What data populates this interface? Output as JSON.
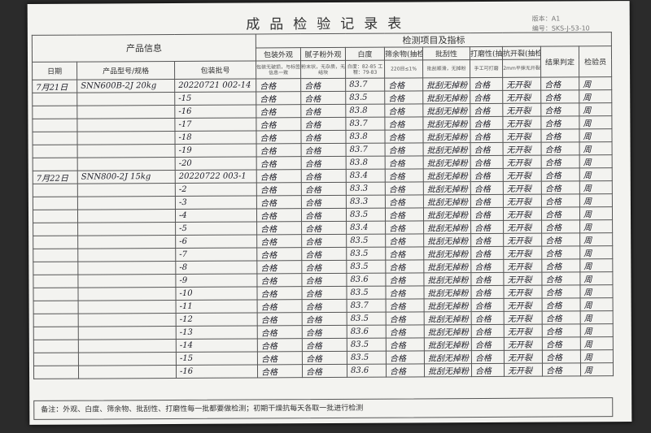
{
  "header": {
    "title": "成品检验记录表",
    "version": "版本：A1",
    "code": "编号：SKS-J-53-10"
  },
  "table": {
    "group_headers": [
      "产品信息",
      "检测项目及指标"
    ],
    "columns": [
      "日期",
      "产品型号/规格",
      "包装批号",
      "包装外观",
      "腻子粉外观",
      "白度",
      "筛余物(抽检)",
      "批刮性",
      "打磨性(抽检)",
      "抗开裂(抽检)",
      "结果判定",
      "检验员"
    ],
    "criteria": [
      "包装无破损，与标签信息一致",
      "粉末状，无杂质，无结块",
      "白度：82-85 工程：79-83",
      "220目≤1%",
      "批刮顺滑，无掉粉",
      "手工可打磨",
      "2mm平抹无开裂"
    ],
    "rows": [
      [
        "7月21日",
        "SNN600B-2J 20kg",
        "20220721 002-14",
        "合格",
        "合格",
        83.7,
        "合格",
        "批刮无掉粉",
        "合格",
        "无开裂",
        "合格",
        "周"
      ],
      [
        null,
        null,
        "-15",
        "合格",
        "合格",
        83.5,
        "合格",
        "批刮无掉粉",
        "合格",
        "无开裂",
        "合格",
        "周"
      ],
      [
        null,
        null,
        "-16",
        "合格",
        "合格",
        83.8,
        "合格",
        "批刮无掉粉",
        "合格",
        "无开裂",
        "合格",
        "周"
      ],
      [
        null,
        null,
        "-17",
        "合格",
        "合格",
        83.7,
        "合格",
        "批刮无掉粉",
        "合格",
        "无开裂",
        "合格",
        "周"
      ],
      [
        null,
        null,
        "-18",
        "合格",
        "合格",
        83.8,
        "合格",
        "批刮无掉粉",
        "合格",
        "无开裂",
        "合格",
        "周"
      ],
      [
        null,
        null,
        "-19",
        "合格",
        "合格",
        83.7,
        "合格",
        "批刮无掉粉",
        "合格",
        "无开裂",
        "合格",
        "周"
      ],
      [
        null,
        null,
        "-20",
        "合格",
        "合格",
        83.8,
        "合格",
        "批刮无掉粉",
        "合格",
        "无开裂",
        "合格",
        "周"
      ],
      [
        "7月22日",
        "SNN800-2J 15kg",
        "20220722 003-1",
        "合格",
        "合格",
        83.4,
        "合格",
        "批刮无掉粉",
        "合格",
        "无开裂",
        "合格",
        "周"
      ],
      [
        null,
        null,
        "-2",
        "合格",
        "合格",
        83.3,
        "合格",
        "批刮无掉粉",
        "合格",
        "无开裂",
        "合格",
        "周"
      ],
      [
        null,
        null,
        "-3",
        "合格",
        "合格",
        83.3,
        "合格",
        "批刮无掉粉",
        "合格",
        "无开裂",
        "合格",
        "周"
      ],
      [
        null,
        null,
        "-4",
        "合格",
        "合格",
        83.5,
        "合格",
        "批刮无掉粉",
        "合格",
        "无开裂",
        "合格",
        "周"
      ],
      [
        null,
        null,
        "-5",
        "合格",
        "合格",
        83.4,
        "合格",
        "批刮无掉粉",
        "合格",
        "无开裂",
        "合格",
        "周"
      ],
      [
        null,
        null,
        "-6",
        "合格",
        "合格",
        83.5,
        "合格",
        "批刮无掉粉",
        "合格",
        "无开裂",
        "合格",
        "周"
      ],
      [
        null,
        null,
        "-7",
        "合格",
        "合格",
        83.5,
        "合格",
        "批刮无掉粉",
        "合格",
        "无开裂",
        "合格",
        "周"
      ],
      [
        null,
        null,
        "-8",
        "合格",
        "合格",
        83.5,
        "合格",
        "批刮无掉粉",
        "合格",
        "无开裂",
        "合格",
        "周"
      ],
      [
        null,
        null,
        "-9",
        "合格",
        "合格",
        83.6,
        "合格",
        "批刮无掉粉",
        "合格",
        "无开裂",
        "合格",
        "周"
      ],
      [
        null,
        null,
        "-10",
        "合格",
        "合格",
        83.5,
        "合格",
        "批刮无掉粉",
        "合格",
        "无开裂",
        "合格",
        "周"
      ],
      [
        null,
        null,
        "-11",
        "合格",
        "合格",
        83.7,
        "合格",
        "批刮无掉粉",
        "合格",
        "无开裂",
        "合格",
        "周"
      ],
      [
        null,
        null,
        "-12",
        "合格",
        "合格",
        83.5,
        "合格",
        "批刮无掉粉",
        "合格",
        "无开裂",
        "合格",
        "周"
      ],
      [
        null,
        null,
        "-13",
        "合格",
        "合格",
        83.6,
        "合格",
        "批刮无掉粉",
        "合格",
        "无开裂",
        "合格",
        "周"
      ],
      [
        null,
        null,
        "-14",
        "合格",
        "合格",
        83.5,
        "合格",
        "批刮无掉粉",
        "合格",
        "无开裂",
        "合格",
        "周"
      ],
      [
        null,
        null,
        "-15",
        "合格",
        "合格",
        83.5,
        "合格",
        "批刮无掉粉",
        "合格",
        "无开裂",
        "合格",
        "周"
      ],
      [
        null,
        null,
        "-16",
        "合格",
        "合格",
        83.6,
        "合格",
        "批刮无掉粉",
        "合格",
        "无开裂",
        "合格",
        "周"
      ]
    ]
  },
  "footer": {
    "note": "备注：外观、白度、筛余物、批刮性、打磨性每一批都要做检测；初期干燥抗每天各取一批进行检测"
  }
}
